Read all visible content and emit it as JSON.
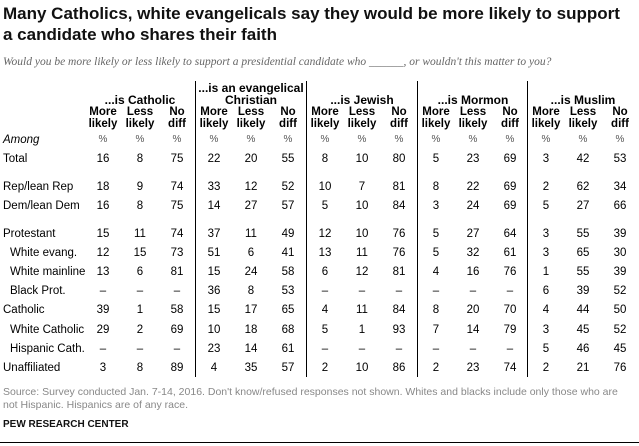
{
  "title": "Many Catholics, white evangelicals say they would be more likely to support a candidate who shares their faith",
  "subtitle": "Would you be more likely or less likely to support a presidential candidate who ______, or wouldn't this matter to you?",
  "groups": [
    {
      "line1": "",
      "line2": "...is Catholic"
    },
    {
      "line1": "...is an evangelical",
      "line2": "Christian"
    },
    {
      "line1": "",
      "line2": "...is Jewish"
    },
    {
      "line1": "",
      "line2": "...is Mormon"
    },
    {
      "line1": "",
      "line2": "...is Muslim"
    }
  ],
  "subheads": [
    [
      "More",
      "likely"
    ],
    [
      "Less",
      "likely"
    ],
    [
      "No",
      "diff"
    ]
  ],
  "among_label": "Among",
  "pct_symbol": "%",
  "rows": [
    {
      "label": "Total",
      "indent": false,
      "values": [
        "16",
        "8",
        "75",
        "22",
        "20",
        "55",
        "8",
        "10",
        "80",
        "5",
        "23",
        "69",
        "3",
        "42",
        "53"
      ]
    },
    {
      "label": "Rep/lean Rep",
      "indent": false,
      "values": [
        "18",
        "9",
        "74",
        "33",
        "12",
        "52",
        "10",
        "7",
        "81",
        "8",
        "22",
        "69",
        "2",
        "62",
        "34"
      ]
    },
    {
      "label": "Dem/lean Dem",
      "indent": false,
      "values": [
        "16",
        "8",
        "75",
        "14",
        "27",
        "57",
        "5",
        "10",
        "84",
        "3",
        "24",
        "69",
        "5",
        "27",
        "66"
      ]
    },
    {
      "label": "Protestant",
      "indent": false,
      "values": [
        "15",
        "11",
        "74",
        "37",
        "11",
        "49",
        "12",
        "10",
        "76",
        "5",
        "27",
        "64",
        "3",
        "55",
        "39"
      ]
    },
    {
      "label": "White evang.",
      "indent": true,
      "values": [
        "12",
        "15",
        "73",
        "51",
        "6",
        "41",
        "13",
        "11",
        "76",
        "5",
        "32",
        "61",
        "3",
        "65",
        "30"
      ]
    },
    {
      "label": "White mainline",
      "indent": true,
      "values": [
        "13",
        "6",
        "81",
        "15",
        "24",
        "58",
        "6",
        "12",
        "81",
        "4",
        "16",
        "76",
        "1",
        "55",
        "39"
      ]
    },
    {
      "label": "Black Prot.",
      "indent": true,
      "values": [
        "–",
        "–",
        "–",
        "36",
        "8",
        "53",
        "–",
        "–",
        "–",
        "–",
        "–",
        "–",
        "6",
        "39",
        "52"
      ]
    },
    {
      "label": "Catholic",
      "indent": false,
      "values": [
        "39",
        "1",
        "58",
        "15",
        "17",
        "65",
        "4",
        "11",
        "84",
        "8",
        "20",
        "70",
        "4",
        "44",
        "50"
      ]
    },
    {
      "label": "White Catholic",
      "indent": true,
      "values": [
        "29",
        "2",
        "69",
        "10",
        "18",
        "68",
        "5",
        "1",
        "93",
        "7",
        "14",
        "79",
        "3",
        "45",
        "52"
      ]
    },
    {
      "label": "Hispanic Cath.",
      "indent": true,
      "values": [
        "–",
        "–",
        "–",
        "23",
        "14",
        "61",
        "–",
        "–",
        "–",
        "–",
        "–",
        "–",
        "5",
        "46",
        "45"
      ]
    },
    {
      "label": "Unaffiliated",
      "indent": false,
      "values": [
        "3",
        "8",
        "89",
        "4",
        "35",
        "57",
        "2",
        "10",
        "86",
        "2",
        "23",
        "74",
        "2",
        "21",
        "76"
      ]
    }
  ],
  "source": "Source: Survey conducted Jan. 7-14, 2016. Don't know/refused responses not shown. Whites and blacks include only those who are not Hispanic. Hispanics are of any race.",
  "org": "PEW RESEARCH CENTER"
}
